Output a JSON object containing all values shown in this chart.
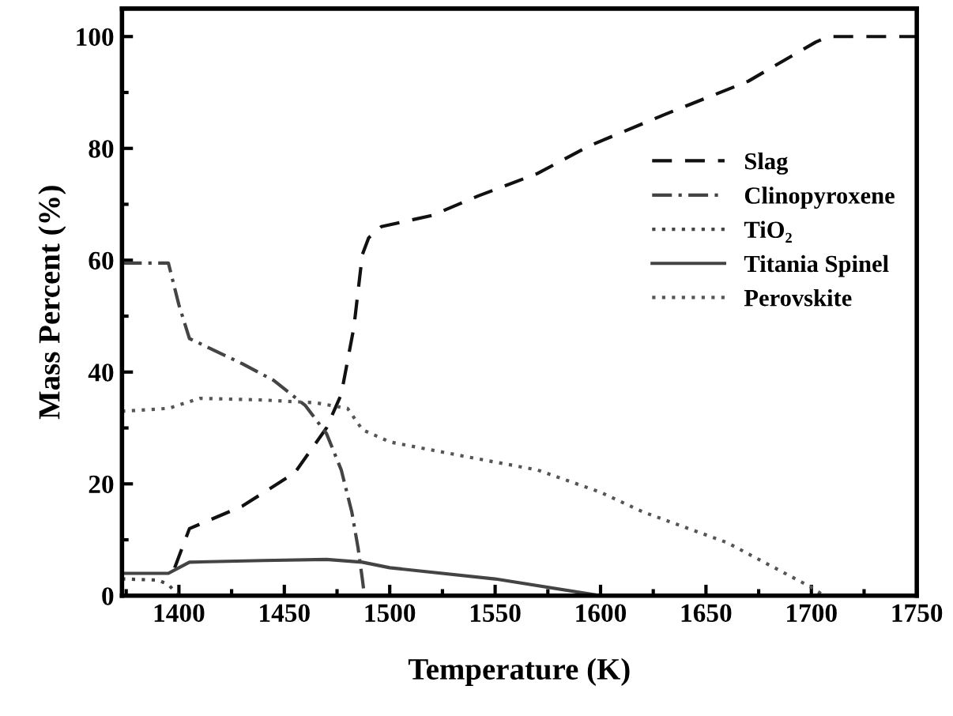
{
  "chart_data": {
    "type": "line",
    "xlabel": "Temperature (K)",
    "ylabel": "Mass Percent (%)",
    "xlim": [
      1373,
      1750
    ],
    "ylim": [
      0,
      105
    ],
    "xticks": [
      1400,
      1450,
      1500,
      1550,
      1600,
      1650,
      1700,
      1750
    ],
    "yticks": [
      0,
      20,
      40,
      60,
      80,
      100
    ],
    "grid": false,
    "legend": "right",
    "marker": "none",
    "series": [
      {
        "name": "Slag",
        "color": "#111111",
        "line_style": "dashed",
        "x": [
          1398,
          1405,
          1430,
          1455,
          1470,
          1477,
          1483,
          1487,
          1490,
          1496,
          1520,
          1542,
          1570,
          1595,
          1630,
          1670,
          1702,
          1708,
          1750
        ],
        "values": [
          5,
          12,
          16,
          22,
          30,
          36,
          48,
          61,
          64,
          66,
          68,
          71.5,
          75.5,
          80.5,
          86,
          92,
          99,
          100,
          100
        ]
      },
      {
        "name": "Clinopyroxene",
        "color": "#444444",
        "line_style": "dashdot",
        "x": [
          1373,
          1395,
          1400,
          1405,
          1430,
          1445,
          1460,
          1470,
          1477,
          1482,
          1485,
          1487,
          1488
        ],
        "values": [
          59.5,
          59.5,
          52,
          46,
          41.5,
          38.5,
          34,
          29,
          22.5,
          15,
          8.5,
          3,
          0
        ]
      },
      {
        "name": "TiO₂",
        "color": "#444444",
        "line_style": "dotted",
        "x": [
          1373,
          1390,
          1395,
          1400
        ],
        "values": [
          3,
          2.8,
          2,
          0
        ]
      },
      {
        "name": "Titania Spinel",
        "color": "#444444",
        "line_style": "solid",
        "x": [
          1373,
          1395,
          1400,
          1405,
          1440,
          1470,
          1487,
          1500,
          1550,
          1600
        ],
        "values": [
          4,
          4,
          5,
          6,
          6.3,
          6.5,
          6,
          5,
          3,
          0
        ]
      },
      {
        "name": "Perovskite",
        "color": "#555555",
        "line_style": "dotted",
        "x": [
          1373,
          1395,
          1410,
          1440,
          1465,
          1480,
          1487,
          1500,
          1540,
          1570,
          1600,
          1620,
          1660,
          1685,
          1700,
          1706
        ],
        "values": [
          33,
          33.5,
          35.3,
          35,
          34.5,
          33.5,
          29.7,
          27.5,
          24.6,
          22.5,
          18.5,
          15,
          9.5,
          4.5,
          1.5,
          0
        ]
      }
    ]
  }
}
